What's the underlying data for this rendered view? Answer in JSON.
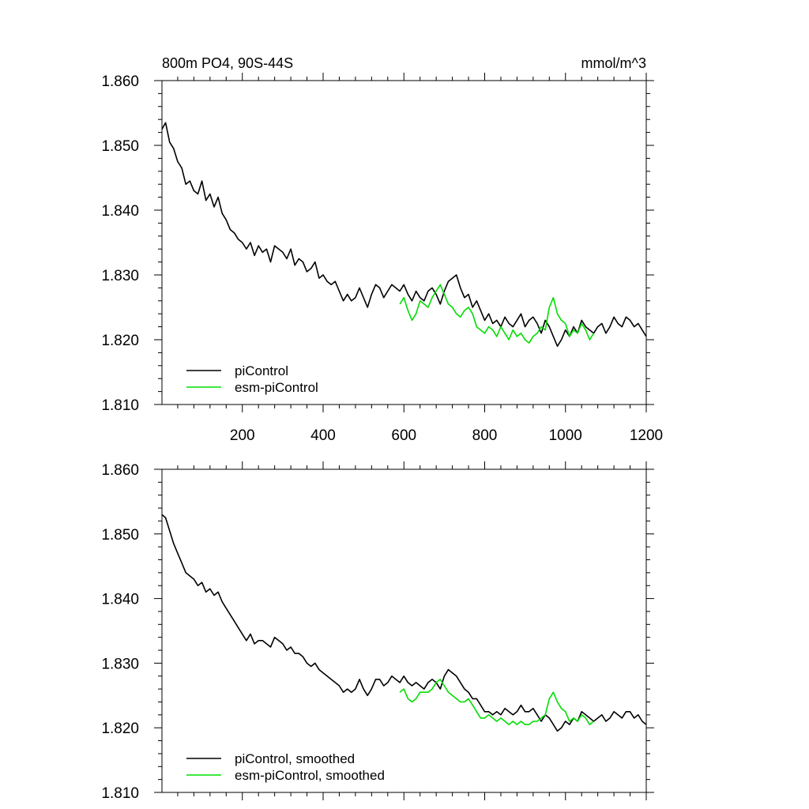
{
  "chart_data": [
    {
      "type": "line",
      "title": "800m PO4, 90S-44S",
      "units": "mmol/m^3",
      "xlim": [
        1,
        1200
      ],
      "ylim": [
        1.81,
        1.86
      ],
      "x_ticks": [
        200,
        400,
        600,
        800,
        1000,
        1200
      ],
      "y_ticks": [
        "1.810",
        "1.820",
        "1.830",
        "1.840",
        "1.850",
        "1.860"
      ],
      "legend_position": "bottom-left",
      "series": [
        {
          "name": "piControl",
          "color": "#000000",
          "x": [
            1,
            10,
            20,
            30,
            40,
            50,
            60,
            70,
            80,
            90,
            100,
            110,
            120,
            130,
            140,
            150,
            160,
            170,
            180,
            190,
            200,
            210,
            220,
            230,
            240,
            250,
            260,
            270,
            280,
            290,
            300,
            310,
            320,
            330,
            340,
            350,
            360,
            370,
            380,
            390,
            400,
            410,
            420,
            430,
            440,
            450,
            460,
            470,
            480,
            490,
            500,
            510,
            520,
            530,
            540,
            550,
            560,
            570,
            580,
            590,
            600,
            610,
            620,
            630,
            640,
            650,
            660,
            670,
            680,
            690,
            700,
            710,
            720,
            730,
            740,
            750,
            760,
            770,
            780,
            790,
            800,
            810,
            820,
            830,
            840,
            850,
            860,
            870,
            880,
            890,
            900,
            910,
            920,
            930,
            940,
            950,
            960,
            970,
            980,
            990,
            1000,
            1010,
            1020,
            1030,
            1040,
            1050,
            1060,
            1070,
            1080,
            1090,
            1100,
            1110,
            1120,
            1130,
            1140,
            1150,
            1160,
            1170,
            1180,
            1190,
            1200
          ],
          "values": [
            1.8525,
            1.8535,
            1.8505,
            1.8495,
            1.8475,
            1.8465,
            1.844,
            1.8445,
            1.843,
            1.8425,
            1.8445,
            1.8415,
            1.8425,
            1.8405,
            1.842,
            1.8395,
            1.8385,
            1.837,
            1.8365,
            1.8355,
            1.835,
            1.834,
            1.835,
            1.833,
            1.8345,
            1.8335,
            1.834,
            1.832,
            1.8345,
            1.834,
            1.8335,
            1.8325,
            1.834,
            1.8315,
            1.8325,
            1.832,
            1.8305,
            1.831,
            1.832,
            1.8295,
            1.83,
            1.829,
            1.8285,
            1.829,
            1.8275,
            1.826,
            1.827,
            1.826,
            1.8265,
            1.828,
            1.8265,
            1.825,
            1.827,
            1.8285,
            1.828,
            1.8265,
            1.8275,
            1.8285,
            1.828,
            1.8275,
            1.8285,
            1.827,
            1.826,
            1.8275,
            1.8265,
            1.826,
            1.8275,
            1.828,
            1.827,
            1.8255,
            1.8275,
            1.829,
            1.8295,
            1.83,
            1.828,
            1.8265,
            1.827,
            1.825,
            1.826,
            1.8245,
            1.823,
            1.824,
            1.8225,
            1.823,
            1.822,
            1.8235,
            1.8225,
            1.822,
            1.823,
            1.824,
            1.822,
            1.823,
            1.8235,
            1.8225,
            1.821,
            1.823,
            1.822,
            1.8205,
            1.819,
            1.82,
            1.8215,
            1.8205,
            1.822,
            1.821,
            1.823,
            1.822,
            1.8215,
            1.821,
            1.822,
            1.8225,
            1.821,
            1.822,
            1.8235,
            1.8225,
            1.822,
            1.8235,
            1.823,
            1.822,
            1.8225,
            1.8215,
            1.8205
          ]
        },
        {
          "name": "esm-piControl",
          "color": "#00dd00",
          "x": [
            590,
            600,
            610,
            620,
            630,
            640,
            650,
            660,
            670,
            680,
            690,
            700,
            710,
            720,
            730,
            740,
            750,
            760,
            770,
            780,
            790,
            800,
            810,
            820,
            830,
            840,
            850,
            860,
            870,
            880,
            890,
            900,
            910,
            920,
            930,
            940,
            950,
            960,
            970,
            980,
            990,
            1000,
            1010,
            1020,
            1030,
            1040,
            1050,
            1060,
            1070
          ],
          "values": [
            1.8255,
            1.8265,
            1.8245,
            1.823,
            1.824,
            1.826,
            1.8255,
            1.825,
            1.8265,
            1.8275,
            1.8285,
            1.827,
            1.8255,
            1.825,
            1.824,
            1.8235,
            1.8245,
            1.825,
            1.824,
            1.822,
            1.8215,
            1.821,
            1.822,
            1.8215,
            1.8205,
            1.822,
            1.821,
            1.82,
            1.8215,
            1.8205,
            1.821,
            1.82,
            1.8195,
            1.8205,
            1.821,
            1.822,
            1.8215,
            1.825,
            1.8265,
            1.824,
            1.823,
            1.8225,
            1.8205,
            1.8215,
            1.821,
            1.8225,
            1.8215,
            1.82,
            1.821
          ]
        }
      ]
    },
    {
      "type": "line",
      "xlim": [
        1,
        1200
      ],
      "ylim": [
        1.81,
        1.86
      ],
      "y_ticks": [
        "1.810",
        "1.820",
        "1.830",
        "1.840",
        "1.850",
        "1.860"
      ],
      "legend_position": "bottom-left",
      "series": [
        {
          "name": "piControl, smoothed",
          "color": "#000000",
          "x": [
            1,
            10,
            20,
            30,
            40,
            50,
            60,
            70,
            80,
            90,
            100,
            110,
            120,
            130,
            140,
            150,
            160,
            170,
            180,
            190,
            200,
            210,
            220,
            230,
            240,
            250,
            260,
            270,
            280,
            290,
            300,
            310,
            320,
            330,
            340,
            350,
            360,
            370,
            380,
            390,
            400,
            410,
            420,
            430,
            440,
            450,
            460,
            470,
            480,
            490,
            500,
            510,
            520,
            530,
            540,
            550,
            560,
            570,
            580,
            590,
            600,
            610,
            620,
            630,
            640,
            650,
            660,
            670,
            680,
            690,
            700,
            710,
            720,
            730,
            740,
            750,
            760,
            770,
            780,
            790,
            800,
            810,
            820,
            830,
            840,
            850,
            860,
            870,
            880,
            890,
            900,
            910,
            920,
            930,
            940,
            950,
            960,
            970,
            980,
            990,
            1000,
            1010,
            1020,
            1030,
            1040,
            1050,
            1060,
            1070,
            1080,
            1090,
            1100,
            1110,
            1120,
            1130,
            1140,
            1150,
            1160,
            1170,
            1180,
            1190,
            1200
          ],
          "values": [
            1.853,
            1.8525,
            1.8505,
            1.8485,
            1.847,
            1.8455,
            1.844,
            1.8435,
            1.843,
            1.842,
            1.8425,
            1.841,
            1.8415,
            1.8405,
            1.841,
            1.8395,
            1.8385,
            1.8375,
            1.8365,
            1.8355,
            1.8345,
            1.8335,
            1.8345,
            1.833,
            1.8335,
            1.8335,
            1.833,
            1.8325,
            1.834,
            1.8335,
            1.833,
            1.832,
            1.8325,
            1.8315,
            1.8315,
            1.831,
            1.83,
            1.8295,
            1.83,
            1.829,
            1.8285,
            1.828,
            1.8275,
            1.827,
            1.8265,
            1.8255,
            1.826,
            1.8255,
            1.826,
            1.8275,
            1.826,
            1.825,
            1.826,
            1.8275,
            1.8275,
            1.8265,
            1.827,
            1.828,
            1.8275,
            1.827,
            1.828,
            1.827,
            1.8265,
            1.827,
            1.8265,
            1.826,
            1.827,
            1.8275,
            1.827,
            1.826,
            1.828,
            1.829,
            1.8285,
            1.828,
            1.827,
            1.826,
            1.8255,
            1.8245,
            1.8245,
            1.8235,
            1.8225,
            1.8225,
            1.822,
            1.8225,
            1.822,
            1.823,
            1.8225,
            1.822,
            1.8225,
            1.8235,
            1.8225,
            1.8225,
            1.823,
            1.822,
            1.821,
            1.822,
            1.8215,
            1.8205,
            1.8195,
            1.82,
            1.821,
            1.8205,
            1.8215,
            1.821,
            1.8225,
            1.822,
            1.8215,
            1.821,
            1.8215,
            1.822,
            1.821,
            1.8215,
            1.8225,
            1.822,
            1.8215,
            1.8225,
            1.8225,
            1.8215,
            1.822,
            1.821,
            1.8205
          ]
        },
        {
          "name": "esm-piControl, smoothed",
          "color": "#00dd00",
          "x": [
            590,
            600,
            610,
            620,
            630,
            640,
            650,
            660,
            670,
            680,
            690,
            700,
            710,
            720,
            730,
            740,
            750,
            760,
            770,
            780,
            790,
            800,
            810,
            820,
            830,
            840,
            850,
            860,
            870,
            880,
            890,
            900,
            910,
            920,
            930,
            940,
            950,
            960,
            970,
            980,
            990,
            1000,
            1010,
            1020,
            1030,
            1040,
            1050,
            1060,
            1070
          ],
          "values": [
            1.8255,
            1.826,
            1.8245,
            1.824,
            1.8245,
            1.8255,
            1.8255,
            1.8255,
            1.826,
            1.827,
            1.8275,
            1.8265,
            1.8255,
            1.825,
            1.8245,
            1.824,
            1.824,
            1.8245,
            1.8235,
            1.8225,
            1.8215,
            1.8215,
            1.822,
            1.8215,
            1.821,
            1.8215,
            1.821,
            1.8205,
            1.821,
            1.8205,
            1.821,
            1.8205,
            1.8205,
            1.821,
            1.821,
            1.8215,
            1.822,
            1.8245,
            1.8255,
            1.824,
            1.823,
            1.8225,
            1.821,
            1.8215,
            1.821,
            1.822,
            1.8215,
            1.8205,
            1.821
          ]
        }
      ]
    }
  ]
}
